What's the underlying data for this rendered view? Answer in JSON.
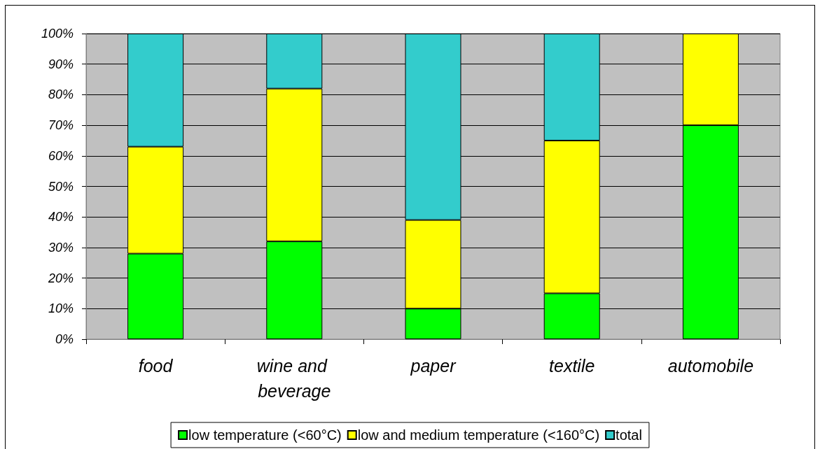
{
  "chart_data": {
    "type": "bar",
    "stacked": true,
    "categories": [
      "food",
      "wine and beverage",
      "paper",
      "textile",
      "automobile"
    ],
    "series": [
      {
        "name": "low temperature (<60°C)",
        "color": "#00ff00",
        "values": [
          28,
          32,
          10,
          15,
          70
        ]
      },
      {
        "name": "low and medium temperature (<160°C)",
        "color": "#ffff00",
        "values": [
          35,
          50,
          29,
          50,
          30
        ]
      },
      {
        "name": "total",
        "color": "#33cccc",
        "values": [
          37,
          18,
          61,
          35,
          null
        ]
      }
    ],
    "ylim": [
      0,
      100
    ],
    "yticks": [
      {
        "value": 0,
        "label": "0%"
      },
      {
        "value": 10,
        "label": "10%"
      },
      {
        "value": 20,
        "label": "20%"
      },
      {
        "value": 30,
        "label": "30%"
      },
      {
        "value": 40,
        "label": "40%"
      },
      {
        "value": 50,
        "label": "50%"
      },
      {
        "value": 60,
        "label": "60%"
      },
      {
        "value": 70,
        "label": "70%"
      },
      {
        "value": 80,
        "label": "80%"
      },
      {
        "value": 90,
        "label": "90%"
      },
      {
        "value": 100,
        "label": "100%"
      }
    ],
    "grid": "y",
    "legend": "bottom"
  }
}
